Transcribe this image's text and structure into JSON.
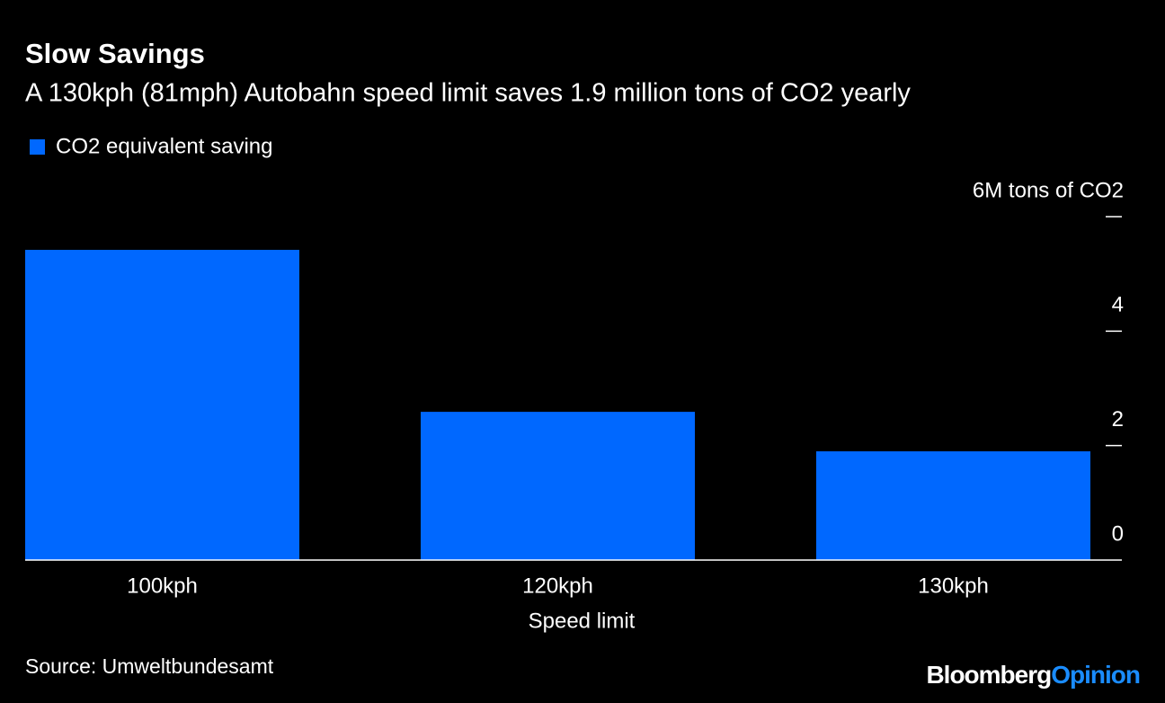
{
  "chart_data": {
    "type": "bar",
    "title": "Slow Savings",
    "subtitle": "A 130kph (81mph) Autobahn speed limit saves 1.9 million tons of CO2 yearly",
    "x_label": "Speed limit",
    "categories": [
      "100kph",
      "120kph",
      "130kph"
    ],
    "series": [
      {
        "name": "CO2 equivalent saving",
        "color": "#0068ff",
        "values": [
          5.42,
          2.59,
          1.9
        ]
      }
    ],
    "ylim": [
      0,
      6
    ],
    "yticks": [
      0,
      2,
      4,
      {
        "value": 6,
        "label": "6M tons of CO2"
      }
    ],
    "source": "Source: Umweltbundesamt",
    "brand": [
      "Bloomberg",
      "Opinion"
    ]
  }
}
